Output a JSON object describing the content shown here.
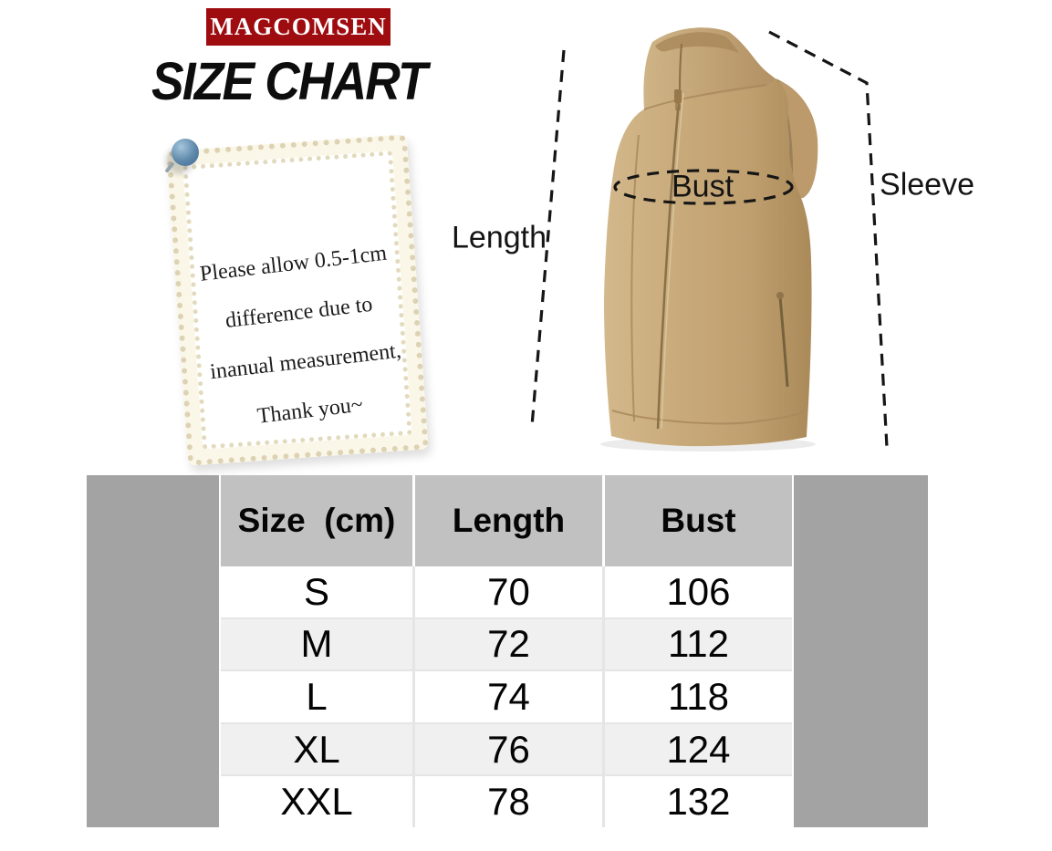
{
  "brand": {
    "logo_text": "MAGCOMSEN"
  },
  "title": "SIZE CHART",
  "note": {
    "lines": [
      "Please allow 0.5-1cm",
      "difference due to",
      "inanual measurement,",
      "Thank you~"
    ]
  },
  "diagram": {
    "garment": "sleeveless zip-up vest",
    "labels": {
      "length": "Length",
      "bust": "Bust",
      "sleeve": "Sleeve"
    }
  },
  "chart_data": {
    "type": "table",
    "title": "SIZE CHART",
    "unit": "cm",
    "columns": [
      "Size  (cm)",
      "Length",
      "Bust"
    ],
    "rows": [
      [
        "S",
        "70",
        "106"
      ],
      [
        "M",
        "72",
        "112"
      ],
      [
        "L",
        "74",
        "118"
      ],
      [
        "XL",
        "76",
        "124"
      ],
      [
        "XXL",
        "78",
        "132"
      ]
    ]
  },
  "colors": {
    "brand_red": "#9e0c10",
    "bar_gray": "#a3a3a3",
    "header_gray": "#c1c1c1",
    "row_alt": "#f0f0f0",
    "grid_line": "#e5e5e5",
    "vest_tan": "#c7a678",
    "pin_blue": "#5d88aa",
    "note_cream": "#fbf7e8"
  }
}
